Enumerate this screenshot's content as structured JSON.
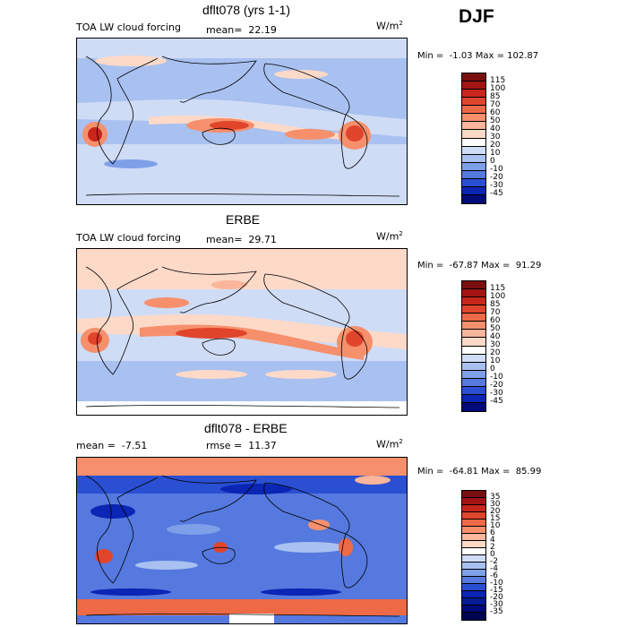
{
  "season": "DJF",
  "units_base": "W/m",
  "units_exp": "2",
  "chart_data": [
    {
      "type": "heatmap",
      "title": "dflt078 (yrs 1-1)",
      "field": "TOA LW cloud forcing",
      "mean_label": "mean=",
      "mean": "22.19",
      "min_label": "Min =",
      "min": "-1.03",
      "max_label": "Max =",
      "max": "102.87",
      "colorbar": {
        "levels": [
          "115",
          "100",
          "85",
          "70",
          "60",
          "50",
          "40",
          "30",
          "20",
          "10",
          "0",
          "-10",
          "-20",
          "-30",
          "-45"
        ],
        "colors": [
          "#7a0f0f",
          "#a31414",
          "#c8261c",
          "#e0452c",
          "#ee6a47",
          "#f6906c",
          "#fbb59a",
          "#fdd9c8",
          "#ffffff",
          "#cfdcf6",
          "#a9c1f0",
          "#7ea0e8",
          "#5579df",
          "#2a4fd2",
          "#0b25b4",
          "#000a78"
        ]
      }
    },
    {
      "type": "heatmap",
      "title": "ERBE",
      "field": "TOA LW cloud forcing",
      "mean_label": "mean=",
      "mean": "29.71",
      "min_label": "Min =",
      "min": "-67.87",
      "max_label": "Max =",
      "max": "91.29",
      "colorbar": {
        "levels": [
          "115",
          "100",
          "85",
          "70",
          "60",
          "50",
          "40",
          "30",
          "20",
          "10",
          "0",
          "-10",
          "-20",
          "-30",
          "-45"
        ],
        "colors": [
          "#7a0f0f",
          "#a31414",
          "#c8261c",
          "#e0452c",
          "#ee6a47",
          "#f6906c",
          "#fbb59a",
          "#fdd9c8",
          "#ffffff",
          "#cfdcf6",
          "#a9c1f0",
          "#7ea0e8",
          "#5579df",
          "#2a4fd2",
          "#0b25b4",
          "#000a78"
        ]
      }
    },
    {
      "type": "heatmap",
      "title": "dflt078 - ERBE",
      "mean_label": "mean =",
      "mean": "-7.51",
      "rmse_label": "rmse =",
      "rmse": "11.37",
      "min_label": "Min =",
      "min": "-64.81",
      "max_label": "Max =",
      "max": "85.99",
      "colorbar": {
        "levels": [
          "35",
          "30",
          "20",
          "15",
          "10",
          "6",
          "4",
          "2",
          "0",
          "-2",
          "-4",
          "-6",
          "-10",
          "-15",
          "-20",
          "-30",
          "-35"
        ],
        "colors": [
          "#7a0f0f",
          "#a31414",
          "#c8261c",
          "#e0452c",
          "#ee6a47",
          "#f6906c",
          "#fbb59a",
          "#fdd9c8",
          "#ffffff",
          "#cfdcf6",
          "#a9c1f0",
          "#7ea0e8",
          "#5579df",
          "#2a4fd2",
          "#0b25b4",
          "#061b96",
          "#000a78",
          "#000552"
        ]
      }
    }
  ]
}
